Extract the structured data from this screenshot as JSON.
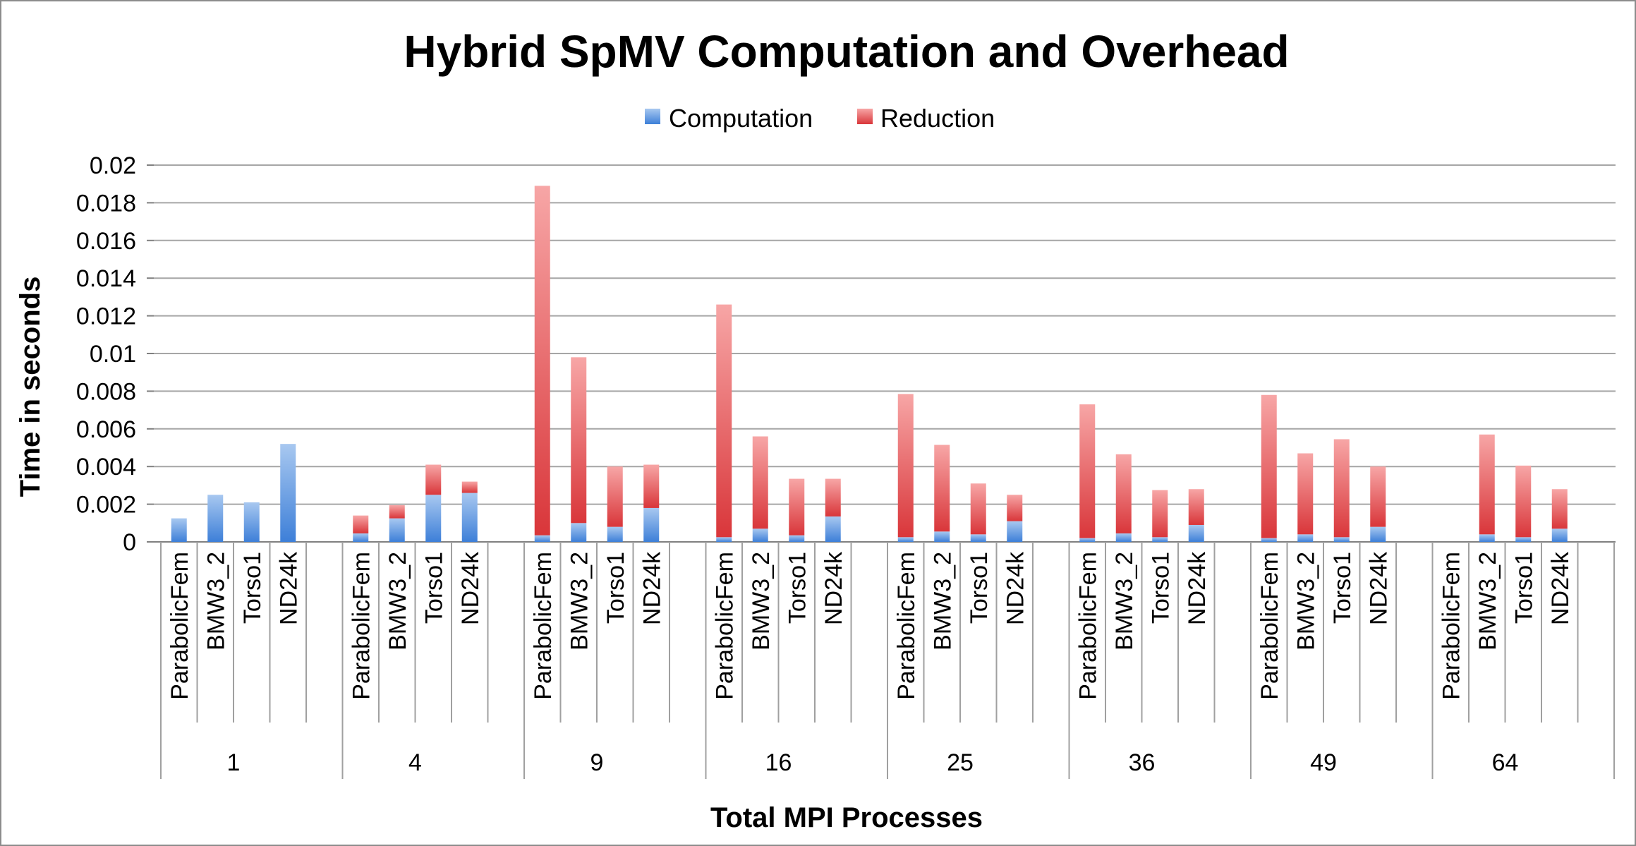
{
  "chart_data": {
    "type": "bar",
    "stacked": true,
    "title": "Hybrid SpMV Computation and Overhead",
    "xlabel": "Total MPI Processes",
    "ylabel": "Time in seconds",
    "ylim": [
      0,
      0.02
    ],
    "yticks": [
      "0",
      "0.002",
      "0.004",
      "0.006",
      "0.008",
      "0.01",
      "0.012",
      "0.014",
      "0.016",
      "0.018",
      "0.02"
    ],
    "grid": true,
    "legend_position": "top",
    "groups": [
      "1",
      "4",
      "9",
      "16",
      "25",
      "36",
      "49",
      "64"
    ],
    "categories": [
      "ParabolicFem",
      "BMW3_2",
      "Torso1",
      "ND24k"
    ],
    "series": [
      {
        "name": "Computation",
        "color": "#4a8ee0",
        "values": [
          [
            0.00125,
            0.0025,
            0.0021,
            0.0052
          ],
          [
            0.00045,
            0.00125,
            0.0025,
            0.0026
          ],
          [
            0.00035,
            0.001,
            0.0008,
            0.0018
          ],
          [
            0.00025,
            0.0007,
            0.00035,
            0.00135
          ],
          [
            0.00025,
            0.00055,
            0.0004,
            0.0011
          ],
          [
            0.0002,
            0.00045,
            0.00025,
            0.0009
          ],
          [
            0.0002,
            0.0004,
            0.00025,
            0.0008
          ],
          [
            0,
            0.0004,
            0.00025,
            0.0007
          ]
        ]
      },
      {
        "name": "Reduction",
        "color": "#e05050",
        "values": [
          [
            0,
            0,
            0,
            0
          ],
          [
            0.00095,
            0.0007,
            0.0016,
            0.0006
          ],
          [
            0.01855,
            0.0088,
            0.0032,
            0.0023
          ],
          [
            0.01235,
            0.0049,
            0.003,
            0.002
          ],
          [
            0.0076,
            0.0046,
            0.0027,
            0.0014
          ],
          [
            0.0071,
            0.0042,
            0.0025,
            0.0019
          ],
          [
            0.0076,
            0.0043,
            0.0052,
            0.0032
          ],
          [
            0,
            0.0053,
            0.0038,
            0.0021
          ]
        ]
      }
    ]
  }
}
